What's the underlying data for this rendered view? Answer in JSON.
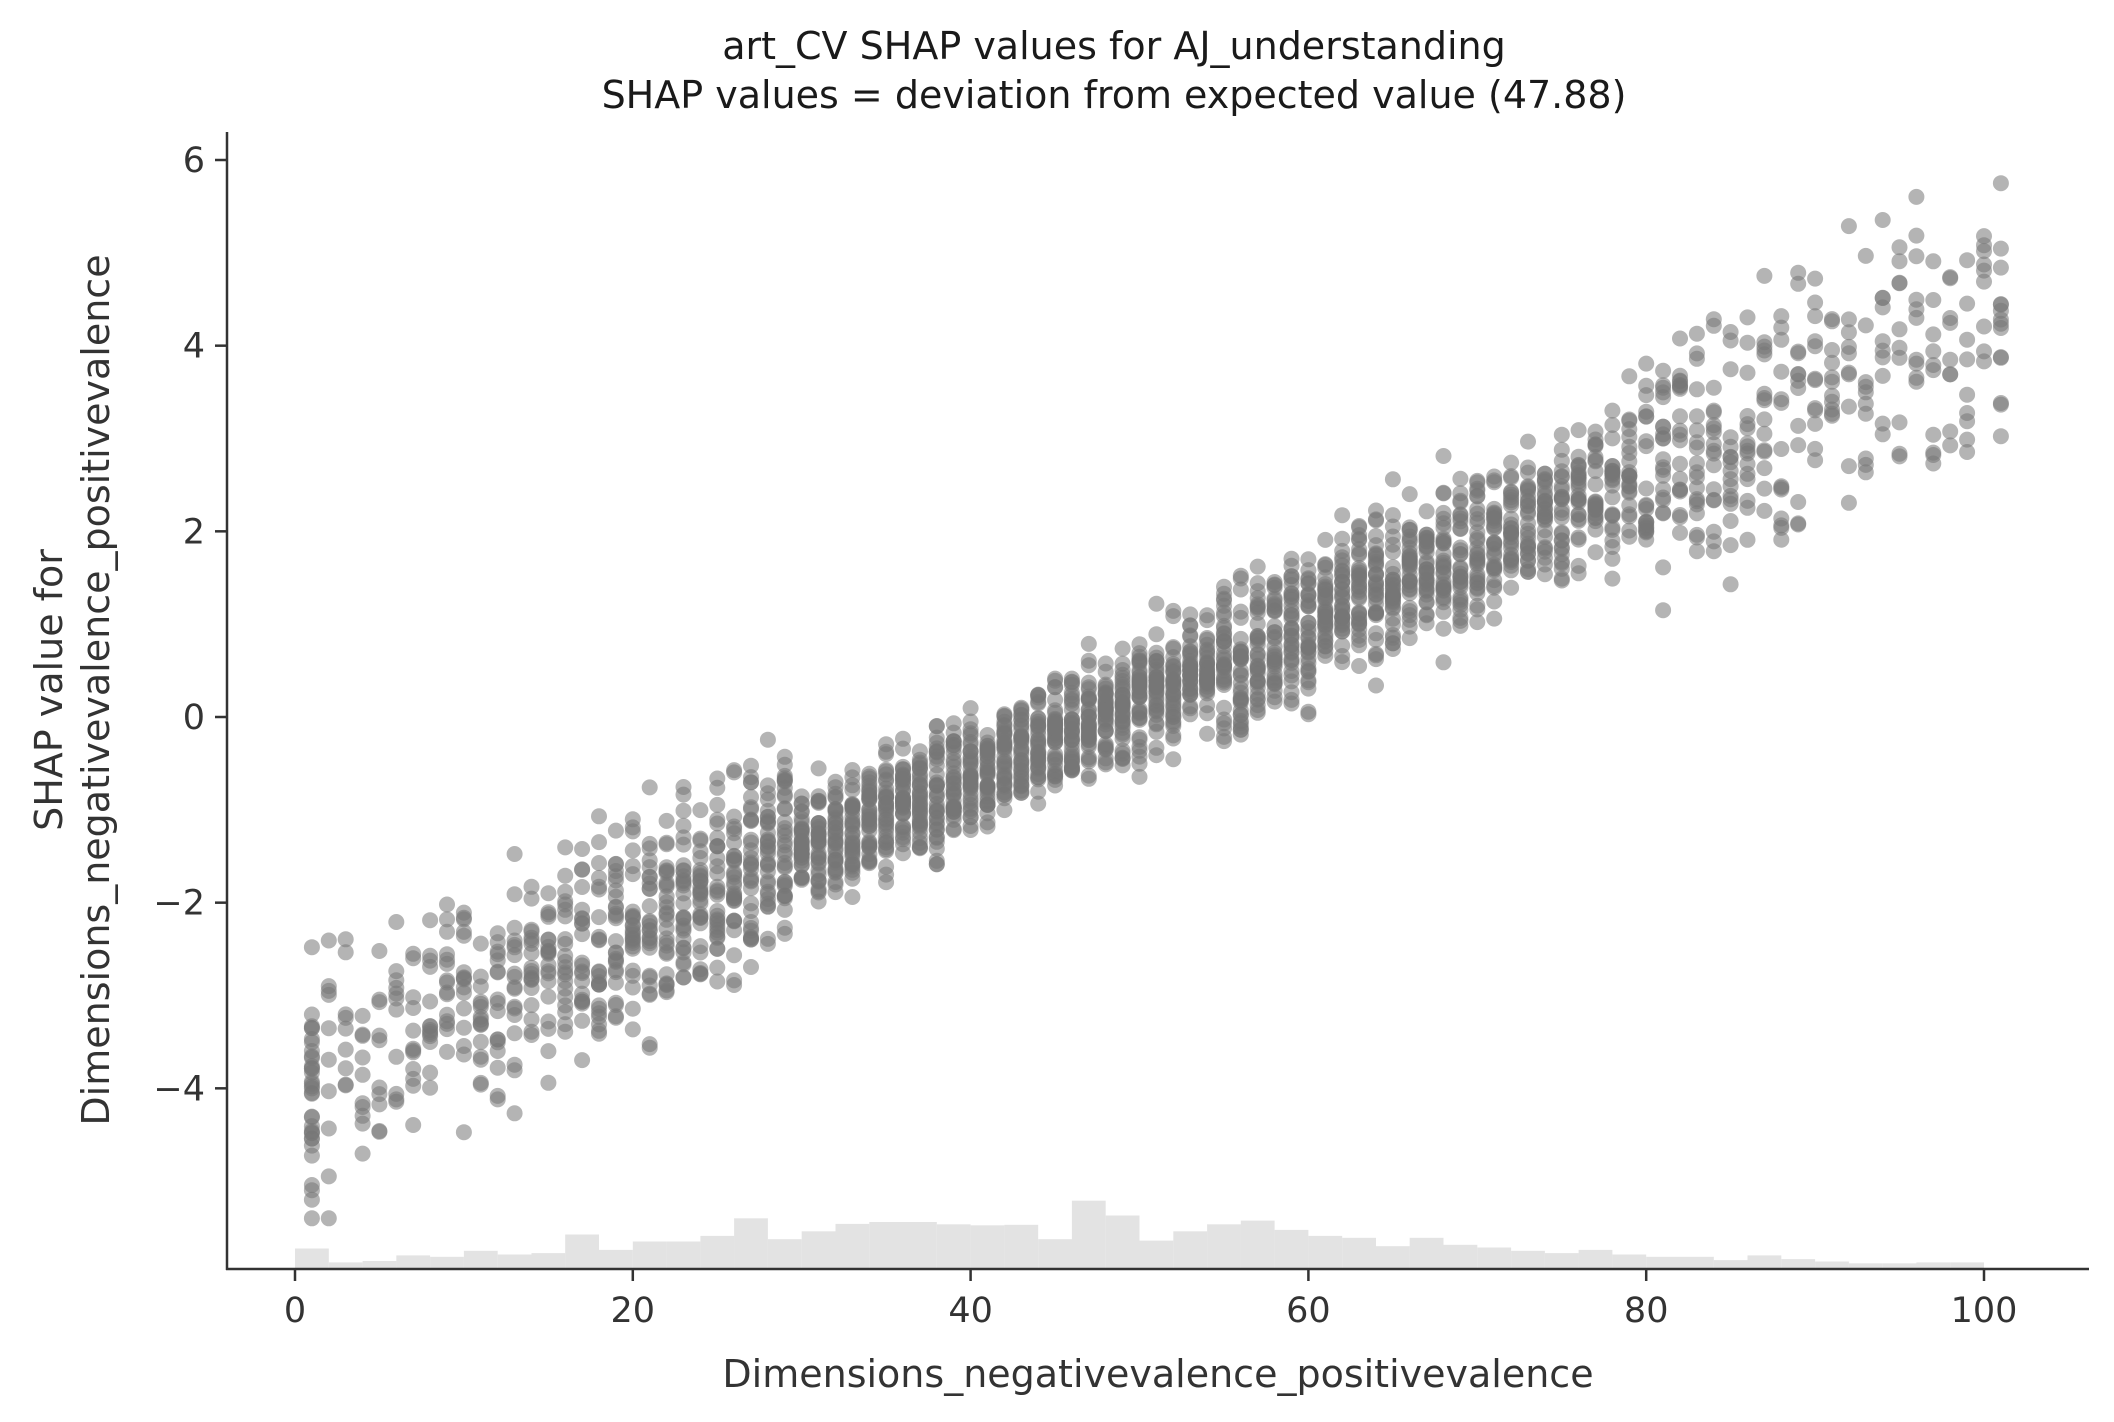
{
  "chart_data": {
    "type": "scatter",
    "title": "art_CV SHAP values for AJ_understanding",
    "subtitle": "SHAP values = deviation from expected value (47.88)",
    "xlabel": "Dimensions_negativevalence_positivevalence",
    "ylabel_line1": "SHAP value for",
    "ylabel_line2": "Dimensions_negativevalence_positivevalence",
    "xlim": [
      -4,
      106
    ],
    "ylim": [
      -5.9,
      6.3
    ],
    "xticks": [
      0,
      20,
      40,
      60,
      80,
      100
    ],
    "yticks": [
      -4,
      -2,
      0,
      2,
      4,
      6
    ],
    "xtick_labels": [
      "0",
      "20",
      "40",
      "60",
      "80",
      "100"
    ],
    "ytick_labels": [
      "−4",
      "−2",
      "0",
      "2",
      "4",
      "6"
    ],
    "grid": false,
    "point_color": "#777777",
    "histogram_color": "#e3e3e3",
    "trend": {
      "slope": 0.082,
      "intercept": -3.9
    },
    "points_per_x": {
      "1": 34,
      "2": 10,
      "3": 9,
      "4": 10,
      "5": 10,
      "6": 11,
      "7": 12,
      "8": 14,
      "9": 15,
      "10": 16,
      "11": 16,
      "12": 17,
      "13": 18,
      "14": 19,
      "15": 20,
      "16": 21,
      "17": 22,
      "18": 24,
      "19": 26,
      "20": 26,
      "21": 28,
      "22": 28,
      "23": 30,
      "24": 30,
      "25": 30,
      "26": 31,
      "27": 32,
      "28": 32,
      "29": 34,
      "30": 36,
      "31": 36,
      "32": 36,
      "33": 37,
      "34": 37,
      "35": 37,
      "36": 37,
      "37": 38,
      "38": 38,
      "39": 38,
      "40": 38,
      "41": 38,
      "42": 38,
      "43": 38,
      "44": 38,
      "45": 38,
      "46": 38,
      "47": 38,
      "48": 38,
      "49": 38,
      "50": 40,
      "51": 38,
      "52": 37,
      "53": 36,
      "54": 36,
      "55": 36,
      "56": 36,
      "57": 36,
      "58": 36,
      "59": 36,
      "60": 36,
      "61": 36,
      "62": 36,
      "63": 35,
      "64": 35,
      "65": 34,
      "66": 34,
      "67": 33,
      "68": 33,
      "69": 32,
      "70": 32,
      "71": 31,
      "72": 30,
      "73": 29,
      "74": 28,
      "75": 27,
      "76": 26,
      "77": 25,
      "78": 24,
      "79": 23,
      "80": 22,
      "81": 21,
      "82": 20,
      "83": 19,
      "84": 18,
      "85": 17,
      "86": 16,
      "87": 15,
      "88": 14,
      "89": 13,
      "90": 12,
      "91": 11,
      "92": 10,
      "93": 10,
      "94": 10,
      "95": 10,
      "96": 10,
      "97": 10,
      "98": 9,
      "99": 9,
      "100": 9,
      "101": 14
    },
    "histogram": {
      "bin_width": 2,
      "bins": [
        {
          "x": 0,
          "h": 0.35
        },
        {
          "x": 2,
          "h": 0.05
        },
        {
          "x": 4,
          "h": 0.08
        },
        {
          "x": 6,
          "h": 0.2
        },
        {
          "x": 8,
          "h": 0.17
        },
        {
          "x": 10,
          "h": 0.3
        },
        {
          "x": 12,
          "h": 0.22
        },
        {
          "x": 14,
          "h": 0.25
        },
        {
          "x": 16,
          "h": 0.65
        },
        {
          "x": 18,
          "h": 0.32
        },
        {
          "x": 20,
          "h": 0.5
        },
        {
          "x": 22,
          "h": 0.5
        },
        {
          "x": 24,
          "h": 0.62
        },
        {
          "x": 26,
          "h": 1.0
        },
        {
          "x": 28,
          "h": 0.55
        },
        {
          "x": 30,
          "h": 0.72
        },
        {
          "x": 32,
          "h": 0.88
        },
        {
          "x": 34,
          "h": 0.92
        },
        {
          "x": 36,
          "h": 0.92
        },
        {
          "x": 38,
          "h": 0.87
        },
        {
          "x": 40,
          "h": 0.85
        },
        {
          "x": 42,
          "h": 0.86
        },
        {
          "x": 44,
          "h": 0.55
        },
        {
          "x": 46,
          "h": 1.38
        },
        {
          "x": 48,
          "h": 1.06
        },
        {
          "x": 50,
          "h": 0.52
        },
        {
          "x": 52,
          "h": 0.72
        },
        {
          "x": 54,
          "h": 0.87
        },
        {
          "x": 56,
          "h": 0.95
        },
        {
          "x": 58,
          "h": 0.75
        },
        {
          "x": 60,
          "h": 0.62
        },
        {
          "x": 62,
          "h": 0.58
        },
        {
          "x": 64,
          "h": 0.4
        },
        {
          "x": 66,
          "h": 0.58
        },
        {
          "x": 68,
          "h": 0.43
        },
        {
          "x": 70,
          "h": 0.37
        },
        {
          "x": 72,
          "h": 0.3
        },
        {
          "x": 74,
          "h": 0.25
        },
        {
          "x": 76,
          "h": 0.32
        },
        {
          "x": 78,
          "h": 0.22
        },
        {
          "x": 80,
          "h": 0.17
        },
        {
          "x": 82,
          "h": 0.17
        },
        {
          "x": 84,
          "h": 0.1
        },
        {
          "x": 86,
          "h": 0.2
        },
        {
          "x": 88,
          "h": 0.12
        },
        {
          "x": 90,
          "h": 0.07
        },
        {
          "x": 92,
          "h": 0.03
        },
        {
          "x": 94,
          "h": 0.03
        },
        {
          "x": 96,
          "h": 0.05
        },
        {
          "x": 98,
          "h": 0.05
        }
      ]
    }
  }
}
